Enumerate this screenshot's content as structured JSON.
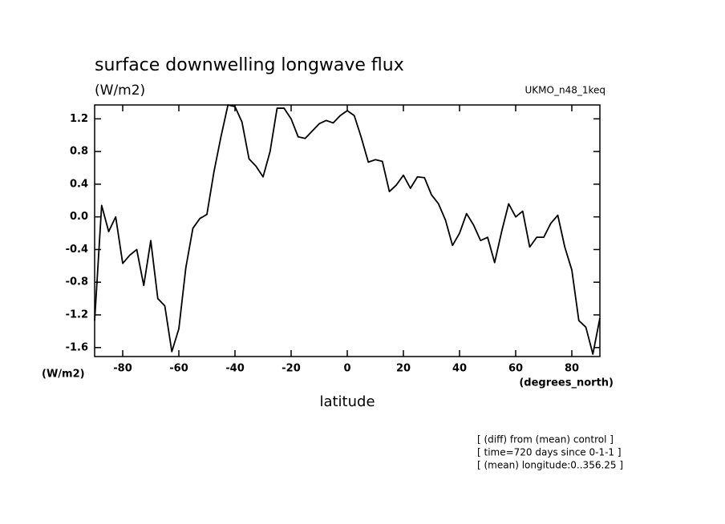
{
  "chart_data": {
    "type": "line",
    "title": "surface downwelling longwave flux",
    "units_label": "(W/m2)",
    "dataset": "UKMO_n48_1keq",
    "y_units": "(W/m2)",
    "x_units": "(degrees_north)",
    "xlabel": "latitude",
    "notes": [
      "[ (diff) from (mean) control ]",
      "[ time=720 days since 0-1-1 ]",
      "[ (mean) longitude:0..356.25 ]"
    ],
    "xlim": [
      -90,
      90
    ],
    "ylim": [
      -1.71,
      1.37
    ],
    "xticks": [
      -80,
      -60,
      -40,
      -20,
      0,
      20,
      40,
      60,
      80
    ],
    "yticks": [
      -1.6,
      -1.2,
      -0.8,
      -0.4,
      {
        "value": 0,
        "label": "0.0"
      },
      0.4,
      0.8,
      1.2
    ],
    "x": [
      -90,
      -87.5,
      -85,
      -82.5,
      -80,
      -77.5,
      -75,
      -72.5,
      -70,
      -67.5,
      -65,
      -62.5,
      -60,
      -57.5,
      -55,
      -52.5,
      -50,
      -47.5,
      -45,
      -42.5,
      -40,
      -37.5,
      -35,
      -32.5,
      -30,
      -27.5,
      -25,
      -22.5,
      -20,
      -17.5,
      -15,
      -12.5,
      -10,
      -7.5,
      -5,
      -2.5,
      0,
      2.5,
      5,
      7.5,
      10,
      12.5,
      15,
      17.5,
      20,
      22.5,
      25,
      27.5,
      30,
      32.5,
      35,
      37.5,
      40,
      42.5,
      45,
      47.5,
      50,
      52.5,
      55,
      57.5,
      60,
      62.5,
      65,
      67.5,
      70,
      72.5,
      75,
      77.5,
      80,
      82.5,
      85,
      87.5,
      90
    ],
    "series": [
      {
        "name": "UKMO_n48_1keq",
        "color": "#000000",
        "values": [
          -1.27,
          0.14,
          -0.18,
          0,
          -0.57,
          -0.47,
          -0.4,
          -0.84,
          -0.29,
          -1.0,
          -1.09,
          -1.65,
          -1.37,
          -0.62,
          -0.14,
          -0.02,
          0.03,
          0.55,
          0.98,
          1.37,
          1.35,
          1.16,
          0.71,
          0.62,
          0.49,
          0.8,
          1.33,
          1.33,
          1.2,
          0.98,
          0.96,
          1.05,
          1.14,
          1.18,
          1.15,
          1.24,
          1.3,
          1.24,
          0.97,
          0.67,
          0.7,
          0.68,
          0.31,
          0.39,
          0.51,
          0.35,
          0.49,
          0.48,
          0.27,
          0.16,
          -0.04,
          -0.35,
          -0.2,
          0.04,
          -0.1,
          -0.29,
          -0.25,
          -0.56,
          -0.18,
          0.16,
          0,
          0.07,
          -0.37,
          -0.25,
          -0.25,
          -0.08,
          0.02,
          -0.37,
          -0.65,
          -1.27,
          -1.35,
          -1.68,
          -1.24
        ]
      }
    ]
  }
}
